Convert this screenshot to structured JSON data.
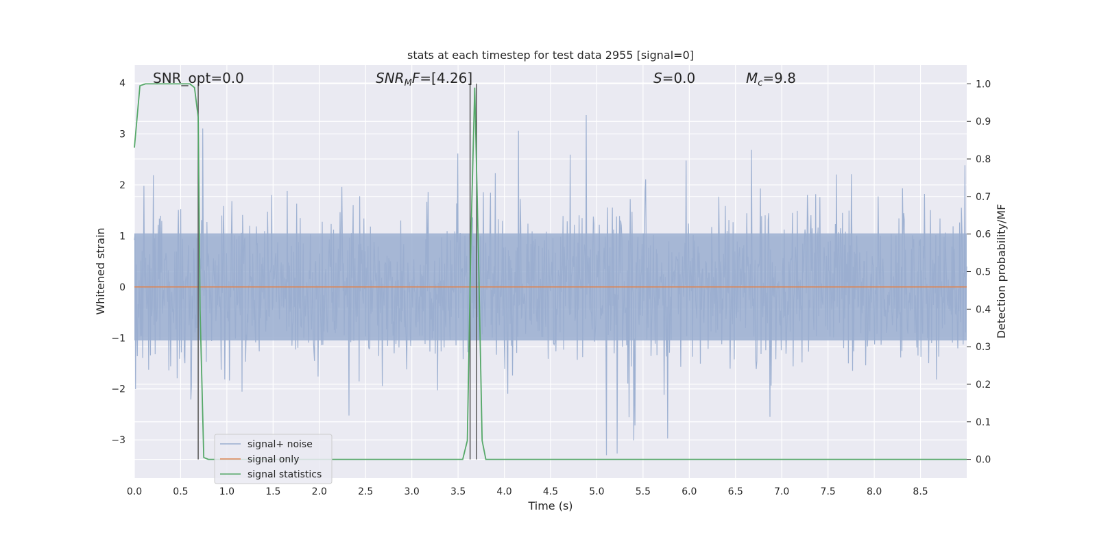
{
  "chart_data": {
    "type": "line",
    "title": "stats at each timestep for test data 2955 [signal=0]",
    "xlabel": "Time (s)",
    "ylabel": "Whitened strain",
    "y2label": "Detection probability/MF",
    "xlim": [
      0.0,
      9.0
    ],
    "ylim": [
      -3.75,
      4.35
    ],
    "y2lim": [
      -0.05,
      1.05
    ],
    "xticks": [
      "0.0",
      "0.5",
      "1.0",
      "1.5",
      "2.0",
      "2.5",
      "3.0",
      "3.5",
      "4.0",
      "4.5",
      "5.0",
      "5.5",
      "6.0",
      "6.5",
      "7.0",
      "7.5",
      "8.0",
      "8.5"
    ],
    "yticks": [
      "−3",
      "−2",
      "−1",
      "0",
      "1",
      "2",
      "3",
      "4"
    ],
    "y2ticks": [
      "0.0",
      "0.1",
      "0.2",
      "0.3",
      "0.4",
      "0.5",
      "0.6",
      "0.7",
      "0.8",
      "0.9",
      "1.0"
    ],
    "grid": true,
    "legend_placement": "lower-left",
    "annotations": {
      "snr_opt": "SNR_opt=0.0",
      "snr_mf_italic": "SNR",
      "snr_mf_sub": "M",
      "snr_mf_rest_italic": "F",
      "snr_mf_value": "=[4.26]",
      "s_italic": "S",
      "s_value": "=0.0",
      "mc_italic": "M",
      "mc_sub": "c",
      "mc_value": "=9.8"
    },
    "series": [
      {
        "name": "signal+ noise",
        "color": "#9aaed0",
        "note_values": "noise strain, roughly within -1.2..1.2 with spikes to about ±2.8",
        "envelope": {
          "typical_abs": 1.2,
          "max": 4.0,
          "min": -3.3
        }
      },
      {
        "name": "signal only",
        "color": "#dd8452",
        "x": [
          0.0,
          9.0
        ],
        "values": [
          0.0,
          0.0
        ]
      },
      {
        "name": "signal statistics",
        "color": "#55a868",
        "axis": "right",
        "x": [
          0.0,
          0.06,
          0.12,
          0.2,
          0.3,
          0.4,
          0.5,
          0.6,
          0.65,
          0.69,
          0.71,
          0.75,
          0.8,
          0.9,
          1.0,
          2.0,
          3.0,
          3.5,
          3.55,
          3.6,
          3.64,
          3.68,
          3.72,
          3.76,
          3.8,
          3.9,
          4.5,
          5.5,
          7.5,
          9.0
        ],
        "values": [
          0.83,
          0.995,
          1.0,
          1.0,
          1.0,
          1.0,
          1.0,
          1.0,
          0.99,
          0.91,
          0.4,
          0.005,
          0.0,
          0.0,
          0.0,
          0.0,
          0.0,
          0.0,
          0.0,
          0.05,
          0.6,
          0.99,
          0.55,
          0.05,
          0.0,
          0.0,
          0.0,
          0.0,
          0.0,
          0.0
        ]
      }
    ],
    "vlines": [
      0.69,
      3.63,
      3.7
    ],
    "vline_color": "#555555"
  }
}
